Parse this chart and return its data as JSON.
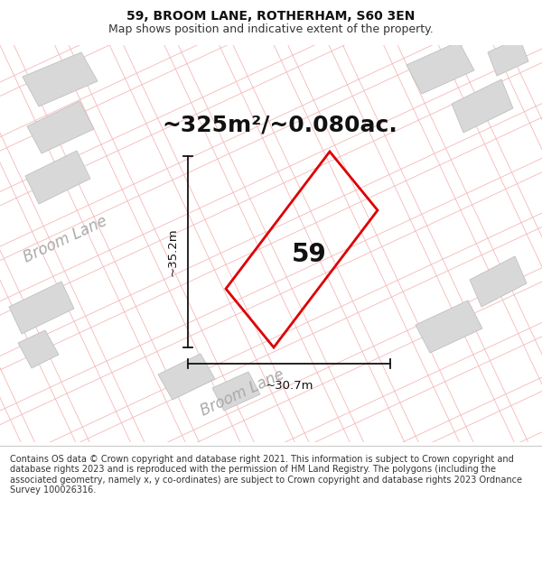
{
  "title_line1": "59, BROOM LANE, ROTHERHAM, S60 3EN",
  "title_line2": "Map shows position and indicative extent of the property.",
  "footer_text": "Contains OS data © Crown copyright and database right 2021. This information is subject to Crown copyright and database rights 2023 and is reproduced with the permission of HM Land Registry. The polygons (including the associated geometry, namely x, y co-ordinates) are subject to Crown copyright and database rights 2023 Ordnance Survey 100026316.",
  "area_text": "~325m²/~0.080ac.",
  "property_number": "59",
  "dim_vertical": "~35.2m",
  "dim_horizontal": "~30.7m",
  "street_label": "Broom Lane",
  "bg_color": "#f5f5f5",
  "map_bg": "#f5f5f5",
  "plot_color": "#dd0000",
  "plot_linewidth": 2.0,
  "building_fill": "#d8d8d8",
  "building_edge": "#c0c0c0",
  "road_fill": "#e8e8e8",
  "road_line_color": "#f5b8b8",
  "title_fontsize": 10,
  "subtitle_fontsize": 9,
  "footer_fontsize": 7.0,
  "area_fontsize": 18,
  "number_fontsize": 20,
  "dim_fontsize": 9.5,
  "street_fontsize": 12
}
